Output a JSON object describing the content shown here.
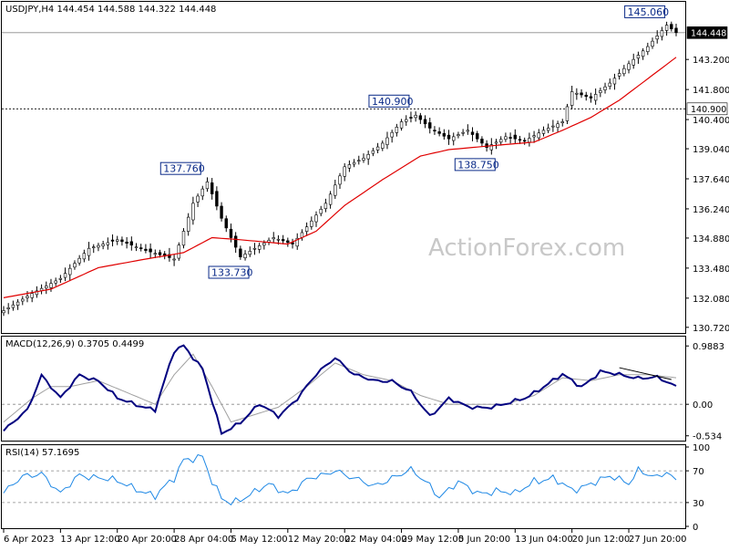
{
  "chart_data": [
    {
      "type": "candlestick",
      "title": "USDJPY,H4 144.454 144.588 144.322 144.448",
      "y_ticks": [
        "143.200",
        "141.800",
        "140.400",
        "139.040",
        "137.640",
        "136.240",
        "134.880",
        "133.480",
        "132.080",
        "130.720"
      ],
      "ylim": [
        130.5,
        145.8
      ],
      "current_price_label": "144.448",
      "level_label": "140.900",
      "level_value": 140.9,
      "annotations": [
        {
          "text": "145.060",
          "value": 145.06,
          "index": 140
        },
        {
          "text": "140.900",
          "value": 140.9,
          "index": 86
        },
        {
          "text": "138.750",
          "value": 138.75,
          "index": 103
        },
        {
          "text": "137.760",
          "value": 137.76,
          "index": 42
        },
        {
          "text": "133.730",
          "value": 133.73,
          "index": 51
        }
      ],
      "close_series_anchors": [
        [
          0,
          131.5
        ],
        [
          6,
          132.3
        ],
        [
          12,
          133.0
        ],
        [
          18,
          134.4
        ],
        [
          24,
          134.8
        ],
        [
          30,
          134.3
        ],
        [
          36,
          133.9
        ],
        [
          40,
          136.5
        ],
        [
          43,
          137.5
        ],
        [
          46,
          135.8
        ],
        [
          50,
          134.0
        ],
        [
          53,
          134.4
        ],
        [
          57,
          134.9
        ],
        [
          61,
          134.6
        ],
        [
          64,
          135.4
        ],
        [
          68,
          136.5
        ],
        [
          72,
          138.2
        ],
        [
          76,
          138.6
        ],
        [
          80,
          139.3
        ],
        [
          84,
          140.3
        ],
        [
          87,
          140.6
        ],
        [
          90,
          140.0
        ],
        [
          94,
          139.5
        ],
        [
          98,
          139.9
        ],
        [
          102,
          139.1
        ],
        [
          106,
          139.6
        ],
        [
          110,
          139.4
        ],
        [
          114,
          139.9
        ],
        [
          118,
          140.3
        ],
        [
          120,
          141.7
        ],
        [
          124,
          141.4
        ],
        [
          128,
          142.1
        ],
        [
          132,
          143.0
        ],
        [
          136,
          143.8
        ],
        [
          140,
          144.8
        ],
        [
          142,
          144.45
        ]
      ],
      "ma_series_anchors": [
        [
          0,
          132.1
        ],
        [
          10,
          132.5
        ],
        [
          20,
          133.5
        ],
        [
          30,
          133.9
        ],
        [
          38,
          134.2
        ],
        [
          44,
          134.9
        ],
        [
          50,
          134.8
        ],
        [
          60,
          134.6
        ],
        [
          66,
          135.2
        ],
        [
          72,
          136.4
        ],
        [
          80,
          137.6
        ],
        [
          88,
          138.7
        ],
        [
          94,
          139.0
        ],
        [
          104,
          139.2
        ],
        [
          112,
          139.35
        ],
        [
          118,
          139.9
        ],
        [
          124,
          140.5
        ],
        [
          130,
          141.3
        ],
        [
          136,
          142.3
        ],
        [
          142,
          143.3
        ]
      ],
      "x_tick_labels": [
        "6 Apr 2023",
        "13 Apr 12:00",
        "20 Apr 20:00",
        "28 Apr 04:00",
        "5 May 12:00",
        "12 May 20:00",
        "22 May 04:00",
        "29 May 12:00",
        "5 Jun 20:00",
        "13 Jun 04:00",
        "20 Jun 12:00",
        "27 Jun 20:00"
      ],
      "x_tick_index": [
        0,
        12,
        24,
        36,
        48,
        60,
        72,
        84,
        96,
        108,
        120,
        132
      ],
      "watermark": "ActionForex.com"
    },
    {
      "type": "line",
      "title": "MACD(12,26,9) 0.3705 0.4499",
      "y_ticks": [
        "0.9883",
        "0.00",
        "-0.534"
      ],
      "y_tick_values": [
        0.9883,
        0.0,
        -0.534
      ],
      "ylim": [
        -0.6,
        1.1
      ],
      "macd_anchors": [
        [
          0,
          -0.45
        ],
        [
          5,
          -0.1
        ],
        [
          8,
          0.5
        ],
        [
          12,
          0.1
        ],
        [
          16,
          0.5
        ],
        [
          20,
          0.4
        ],
        [
          24,
          0.1
        ],
        [
          28,
          0.0
        ],
        [
          32,
          -0.1
        ],
        [
          36,
          0.9
        ],
        [
          38,
          1.0
        ],
        [
          42,
          0.6
        ],
        [
          46,
          -0.5
        ],
        [
          50,
          -0.3
        ],
        [
          54,
          0.0
        ],
        [
          58,
          -0.2
        ],
        [
          62,
          0.1
        ],
        [
          66,
          0.5
        ],
        [
          70,
          0.8
        ],
        [
          74,
          0.5
        ],
        [
          78,
          0.4
        ],
        [
          82,
          0.4
        ],
        [
          86,
          0.2
        ],
        [
          90,
          -0.2
        ],
        [
          94,
          0.1
        ],
        [
          98,
          -0.05
        ],
        [
          102,
          -0.05
        ],
        [
          106,
          0.0
        ],
        [
          110,
          0.1
        ],
        [
          114,
          0.3
        ],
        [
          118,
          0.5
        ],
        [
          122,
          0.3
        ],
        [
          126,
          0.55
        ],
        [
          130,
          0.5
        ],
        [
          134,
          0.45
        ],
        [
          138,
          0.45
        ],
        [
          142,
          0.3
        ]
      ],
      "signal_anchors": [
        [
          0,
          -0.3
        ],
        [
          6,
          0.1
        ],
        [
          10,
          0.3
        ],
        [
          14,
          0.3
        ],
        [
          20,
          0.4
        ],
        [
          26,
          0.2
        ],
        [
          32,
          0.0
        ],
        [
          36,
          0.5
        ],
        [
          40,
          0.85
        ],
        [
          44,
          0.3
        ],
        [
          48,
          -0.3
        ],
        [
          52,
          -0.2
        ],
        [
          58,
          -0.05
        ],
        [
          64,
          0.3
        ],
        [
          70,
          0.7
        ],
        [
          76,
          0.5
        ],
        [
          82,
          0.4
        ],
        [
          88,
          0.15
        ],
        [
          94,
          0.0
        ],
        [
          100,
          0.0
        ],
        [
          106,
          0.0
        ],
        [
          112,
          0.15
        ],
        [
          118,
          0.45
        ],
        [
          124,
          0.4
        ],
        [
          130,
          0.5
        ],
        [
          136,
          0.5
        ],
        [
          142,
          0.45
        ]
      ],
      "zero_label": "0.00"
    },
    {
      "type": "line",
      "title": "RSI(14) 57.1695",
      "y_ticks": [
        "100",
        "70",
        "30",
        "0"
      ],
      "y_tick_values": [
        100,
        70,
        30,
        0
      ],
      "ylim": [
        0,
        100
      ],
      "rsi_anchors": [
        [
          0,
          42
        ],
        [
          4,
          62
        ],
        [
          8,
          68
        ],
        [
          12,
          40
        ],
        [
          16,
          65
        ],
        [
          20,
          62
        ],
        [
          24,
          56
        ],
        [
          28,
          48
        ],
        [
          32,
          38
        ],
        [
          36,
          60
        ],
        [
          38,
          85
        ],
        [
          42,
          88
        ],
        [
          44,
          55
        ],
        [
          46,
          35
        ],
        [
          48,
          30
        ],
        [
          52,
          40
        ],
        [
          56,
          52
        ],
        [
          60,
          42
        ],
        [
          64,
          58
        ],
        [
          68,
          65
        ],
        [
          70,
          72
        ],
        [
          74,
          60
        ],
        [
          78,
          50
        ],
        [
          82,
          62
        ],
        [
          86,
          70
        ],
        [
          90,
          52
        ],
        [
          92,
          38
        ],
        [
          96,
          55
        ],
        [
          100,
          42
        ],
        [
          104,
          45
        ],
        [
          108,
          40
        ],
        [
          112,
          58
        ],
        [
          116,
          60
        ],
        [
          120,
          45
        ],
        [
          124,
          55
        ],
        [
          128,
          62
        ],
        [
          132,
          55
        ],
        [
          134,
          72
        ],
        [
          138,
          60
        ],
        [
          140,
          68
        ],
        [
          142,
          57
        ]
      ]
    }
  ]
}
